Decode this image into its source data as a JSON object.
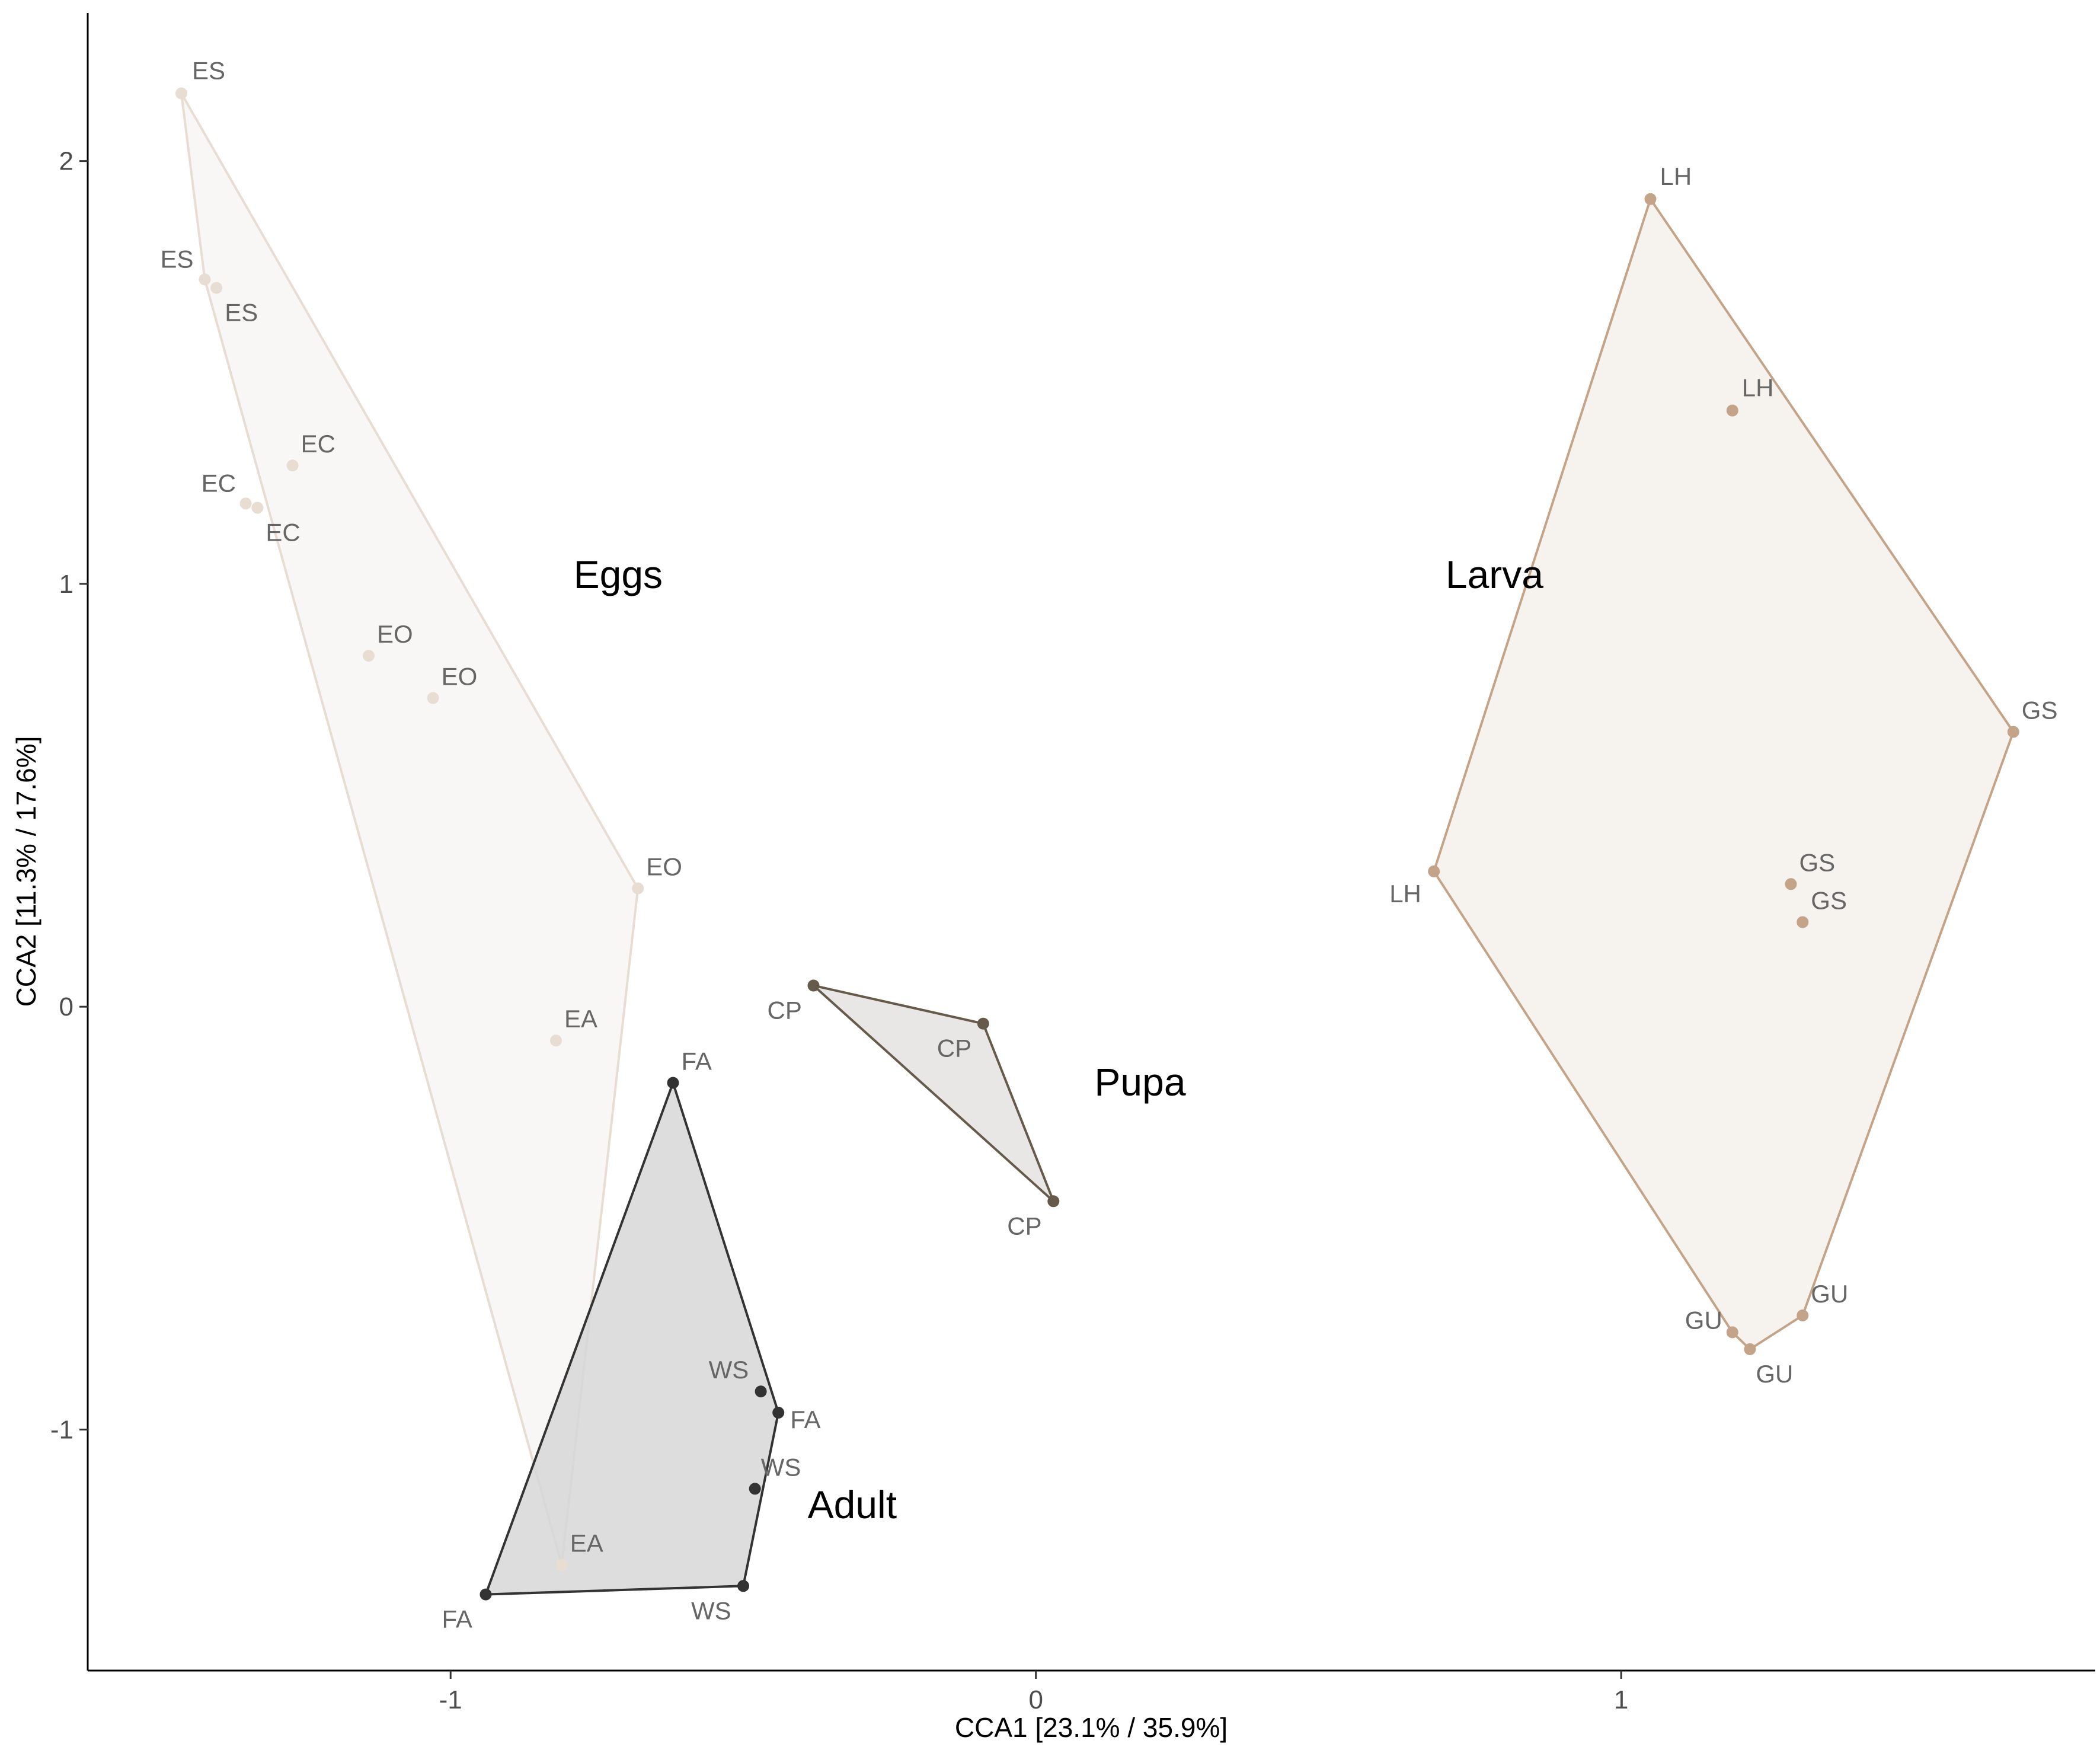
{
  "chart_data": {
    "type": "scatter",
    "title": "",
    "xlabel": "CCA1 [23.1% / 35.9%]",
    "ylabel": "CCA2 [11.3% / 17.6%]",
    "xlim": [
      -1.62,
      1.81
    ],
    "ylim": [
      -1.57,
      2.35
    ],
    "xticks": [
      -1,
      0,
      1
    ],
    "xtick_labels": [
      "-1",
      "0",
      "1"
    ],
    "yticks": [
      -1,
      0,
      1,
      2
    ],
    "ytick_labels": [
      "-1",
      "0",
      "1",
      "2"
    ],
    "grid": false,
    "legend": "none",
    "series": [
      {
        "name": "Eggs",
        "color": "#e8ddd2",
        "fill": "#f8f6f4",
        "label_pos": [
          -0.79,
          0.99
        ],
        "points": [
          {
            "x": -1.46,
            "y": 2.16,
            "label": "ES"
          },
          {
            "x": -1.42,
            "y": 1.72,
            "label": "ES"
          },
          {
            "x": -1.4,
            "y": 1.7,
            "label": "ES"
          },
          {
            "x": -1.27,
            "y": 1.28,
            "label": "EC"
          },
          {
            "x": -1.35,
            "y": 1.19,
            "label": "EC"
          },
          {
            "x": -1.33,
            "y": 1.18,
            "label": "EC"
          },
          {
            "x": -1.14,
            "y": 0.83,
            "label": "EO"
          },
          {
            "x": -1.03,
            "y": 0.73,
            "label": "EO"
          },
          {
            "x": -0.68,
            "y": 0.28,
            "label": "EO"
          },
          {
            "x": -0.82,
            "y": -0.08,
            "label": "EA"
          },
          {
            "x": -0.81,
            "y": -1.32,
            "label": "EA"
          }
        ],
        "hull": [
          0,
          8,
          10,
          1
        ]
      },
      {
        "name": "Larva",
        "color": "#c4a488",
        "fill": "#f4f0ea",
        "label_pos": [
          0.7,
          0.99
        ],
        "points": [
          {
            "x": 1.05,
            "y": 1.91,
            "label": "LH"
          },
          {
            "x": 1.19,
            "y": 1.41,
            "label": "LH"
          },
          {
            "x": 0.68,
            "y": 0.32,
            "label": "LH"
          },
          {
            "x": 1.67,
            "y": 0.65,
            "label": "GS"
          },
          {
            "x": 1.29,
            "y": 0.29,
            "label": "GS"
          },
          {
            "x": 1.31,
            "y": 0.2,
            "label": "GS"
          },
          {
            "x": 1.31,
            "y": -0.73,
            "label": "GU"
          },
          {
            "x": 1.19,
            "y": -0.77,
            "label": "GU"
          },
          {
            "x": 1.22,
            "y": -0.81,
            "label": "GU"
          }
        ],
        "hull": [
          0,
          3,
          6,
          8,
          7,
          2
        ]
      },
      {
        "name": "Pupa",
        "color": "#665a4a",
        "fill": "#e4e3e0",
        "label_pos": [
          0.1,
          -0.21
        ],
        "points": [
          {
            "x": -0.38,
            "y": 0.05,
            "label": "CP"
          },
          {
            "x": -0.09,
            "y": -0.04,
            "label": "CP"
          },
          {
            "x": 0.03,
            "y": -0.46,
            "label": "CP"
          }
        ],
        "hull": [
          0,
          1,
          2
        ]
      },
      {
        "name": "Adult",
        "color": "#333333",
        "fill": "#d7d7d7",
        "label_pos": [
          -0.39,
          -1.21
        ],
        "points": [
          {
            "x": -0.62,
            "y": -0.18,
            "label": "FA"
          },
          {
            "x": -0.47,
            "y": -0.91,
            "label": "WS"
          },
          {
            "x": -0.44,
            "y": -0.96,
            "label": "FA"
          },
          {
            "x": -0.48,
            "y": -1.14,
            "label": "WS"
          },
          {
            "x": -0.5,
            "y": -1.37,
            "label": "WS"
          },
          {
            "x": -0.94,
            "y": -1.39,
            "label": "FA"
          }
        ],
        "hull": [
          0,
          2,
          4,
          5
        ]
      }
    ]
  }
}
